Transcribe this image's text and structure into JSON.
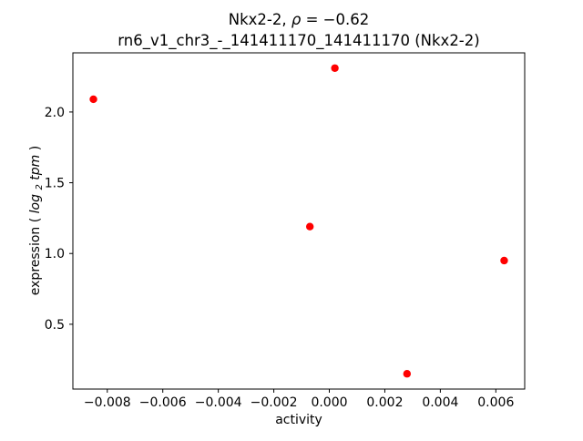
{
  "figure": {
    "title_parts": {
      "name": "Nkx2-2, ",
      "rho": "ρ",
      "value": " = −0.62"
    },
    "subtitle": "rn6_v1_chr3_-_141411170_141411170 (Nkx2-2)",
    "xlabel": "activity",
    "ylabel_parts": {
      "prefix": "expression (",
      "word": "log",
      "sub": "2",
      "tail": "tpm",
      "close": ")"
    }
  },
  "chart_data": {
    "type": "scatter",
    "title": "Nkx2-2, ρ = −0.62",
    "subtitle": "rn6_v1_chr3_-_141411170_141411170 (Nkx2-2)",
    "xlabel": "activity",
    "ylabel": "expression (log₂tpm)",
    "marker_color": "#ff0000",
    "grid": false,
    "legend": "none",
    "xlim": [
      -0.00924,
      0.00704
    ],
    "ylim": [
      0.042,
      2.418
    ],
    "xticks": [
      {
        "v": -0.008,
        "label": "−0.008"
      },
      {
        "v": -0.006,
        "label": "−0.006"
      },
      {
        "v": -0.004,
        "label": "−0.004"
      },
      {
        "v": -0.002,
        "label": "−0.002"
      },
      {
        "v": 0.0,
        "label": "0.000"
      },
      {
        "v": 0.002,
        "label": "0.002"
      },
      {
        "v": 0.004,
        "label": "0.004"
      },
      {
        "v": 0.006,
        "label": "0.006"
      }
    ],
    "yticks": [
      {
        "v": 0.5,
        "label": "0.5"
      },
      {
        "v": 1.0,
        "label": "1.0"
      },
      {
        "v": 1.5,
        "label": "1.5"
      },
      {
        "v": 2.0,
        "label": "2.0"
      }
    ],
    "points": [
      {
        "x": -0.0085,
        "y": 2.09
      },
      {
        "x": 0.0002,
        "y": 2.31
      },
      {
        "x": -0.0007,
        "y": 1.19
      },
      {
        "x": 0.0028,
        "y": 0.15
      },
      {
        "x": 0.0063,
        "y": 0.95
      }
    ]
  }
}
